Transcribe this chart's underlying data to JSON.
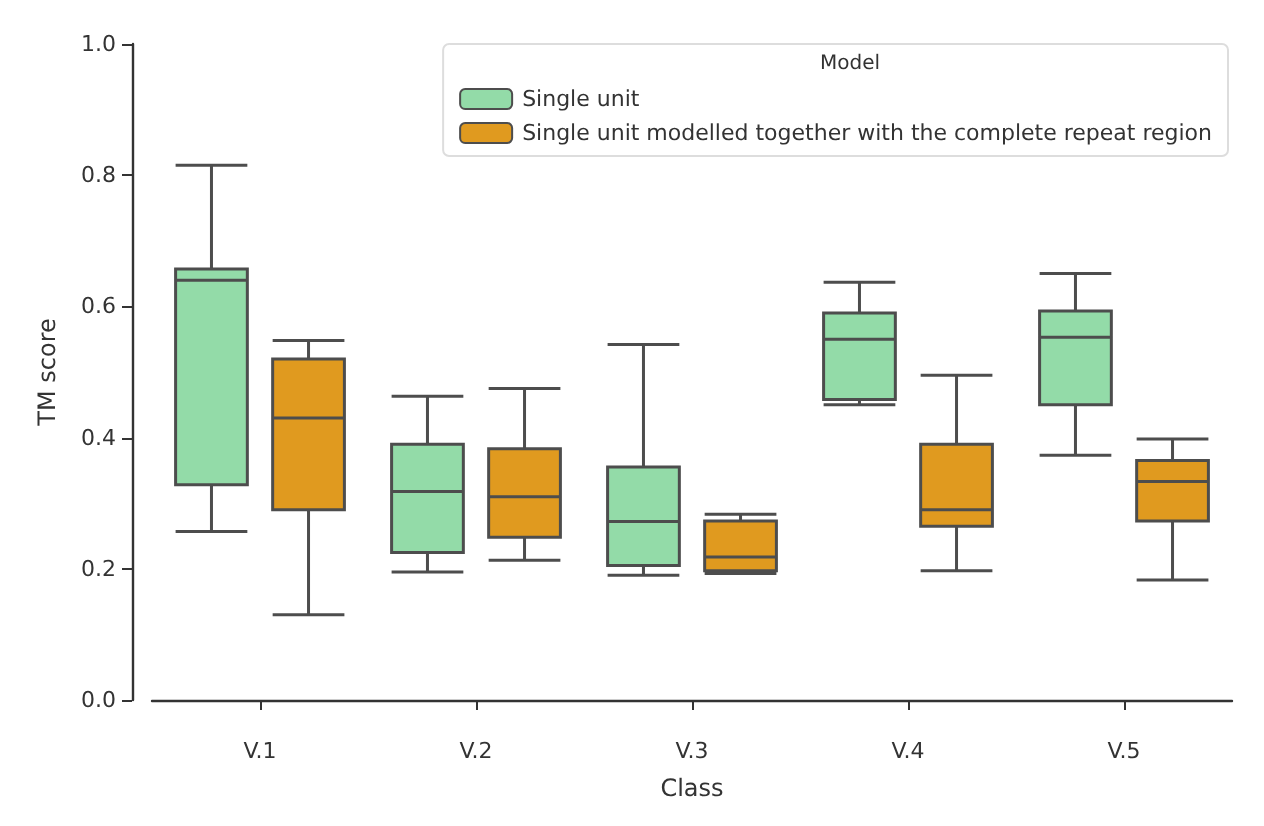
{
  "chart_data": {
    "type": "box",
    "xlabel": "Class",
    "ylabel": "TM score",
    "legend_title": "Model",
    "legend": "top right",
    "categories": [
      "V.1",
      "V.2",
      "V.3",
      "V.4",
      "V.5"
    ],
    "ylim": [
      0,
      1
    ],
    "yticks": [
      {
        "value": 0,
        "label": "0.0"
      },
      0.2,
      0.4,
      0.6,
      0.8,
      {
        "value": 1,
        "label": "1.0"
      }
    ],
    "grid": false,
    "series": [
      {
        "name": "Single unit",
        "color": "#93dba8",
        "boxes": [
          {
            "low": 0.257,
            "q1": 0.328,
            "median": 0.64,
            "q3": 0.657,
            "high": 0.815
          },
          {
            "low": 0.195,
            "q1": 0.225,
            "median": 0.318,
            "q3": 0.39,
            "high": 0.463
          },
          {
            "low": 0.19,
            "q1": 0.205,
            "median": 0.272,
            "q3": 0.355,
            "high": 0.542
          },
          {
            "low": 0.45,
            "q1": 0.458,
            "median": 0.55,
            "q3": 0.59,
            "high": 0.637
          },
          {
            "low": 0.373,
            "q1": 0.45,
            "median": 0.553,
            "q3": 0.593,
            "high": 0.65
          }
        ]
      },
      {
        "name": "Single unit modelled together with the complete repeat region",
        "color": "#e09a1f",
        "boxes": [
          {
            "low": 0.13,
            "q1": 0.29,
            "median": 0.43,
            "q3": 0.52,
            "high": 0.548
          },
          {
            "low": 0.213,
            "q1": 0.248,
            "median": 0.31,
            "q3": 0.383,
            "high": 0.475
          },
          {
            "low": 0.193,
            "q1": 0.197,
            "median": 0.218,
            "q3": 0.273,
            "high": 0.283
          },
          {
            "low": 0.197,
            "q1": 0.265,
            "median": 0.29,
            "q3": 0.39,
            "high": 0.495
          },
          {
            "low": 0.183,
            "q1": 0.273,
            "median": 0.333,
            "q3": 0.365,
            "high": 0.398
          }
        ]
      }
    ]
  }
}
